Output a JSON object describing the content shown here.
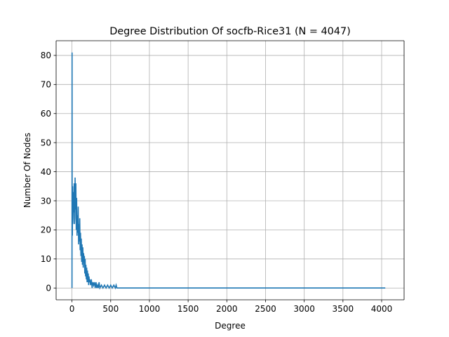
{
  "chart_data": {
    "type": "line",
    "title": "Degree Distribution Of socfb-Rice31 (N = 4047)",
    "xlabel": "Degree",
    "ylabel": "Number Of Nodes",
    "xlim": [
      -205,
      4290
    ],
    "ylim": [
      -4.05,
      85.05
    ],
    "xticks": [
      0,
      500,
      1000,
      1500,
      2000,
      2500,
      3000,
      3500,
      4000
    ],
    "yticks": [
      0,
      10,
      20,
      30,
      40,
      50,
      60,
      70,
      80
    ],
    "xtick_labels": [
      "0",
      "500",
      "1000",
      "1500",
      "2000",
      "2500",
      "3000",
      "3500",
      "4000"
    ],
    "ytick_labels": [
      "0",
      "10",
      "20",
      "30",
      "40",
      "50",
      "60",
      "70",
      "80"
    ],
    "grid": true,
    "legend": "none",
    "series": [
      {
        "color": "#1f77b4",
        "x": [
          0,
          1,
          2,
          3,
          5,
          8,
          10,
          13,
          16,
          20,
          24,
          28,
          32,
          36,
          40,
          45,
          50,
          55,
          60,
          65,
          70,
          75,
          80,
          85,
          90,
          95,
          100,
          105,
          110,
          115,
          120,
          125,
          130,
          135,
          140,
          145,
          150,
          155,
          160,
          165,
          170,
          175,
          180,
          185,
          190,
          195,
          200,
          205,
          210,
          215,
          220,
          225,
          230,
          240,
          250,
          260,
          270,
          280,
          290,
          300,
          310,
          320,
          330,
          340,
          350,
          360,
          380,
          400,
          420,
          440,
          460,
          480,
          500,
          520,
          540,
          560,
          570,
          580,
          600,
          800,
          1000,
          1500,
          2000,
          2500,
          3000,
          3500,
          4047
        ],
        "y": [
          0,
          81,
          30,
          20,
          18,
          35,
          22,
          24,
          28,
          33,
          26,
          36,
          22,
          24,
          38,
          27,
          36,
          20,
          31,
          18,
          25,
          19,
          28,
          15,
          22,
          16,
          24,
          13,
          19,
          11,
          17,
          9,
          15,
          8,
          14,
          7,
          12,
          9,
          11,
          5,
          10,
          4,
          8,
          3,
          7,
          2,
          6,
          2,
          5,
          1,
          4,
          2,
          3,
          1,
          3,
          0,
          2,
          1,
          2,
          0,
          2,
          0,
          1,
          0,
          2,
          0,
          1,
          0,
          1,
          0,
          1,
          0,
          1,
          0,
          1,
          0,
          1,
          0,
          0,
          0,
          0,
          0,
          0,
          0,
          0,
          0,
          0
        ]
      }
    ]
  }
}
